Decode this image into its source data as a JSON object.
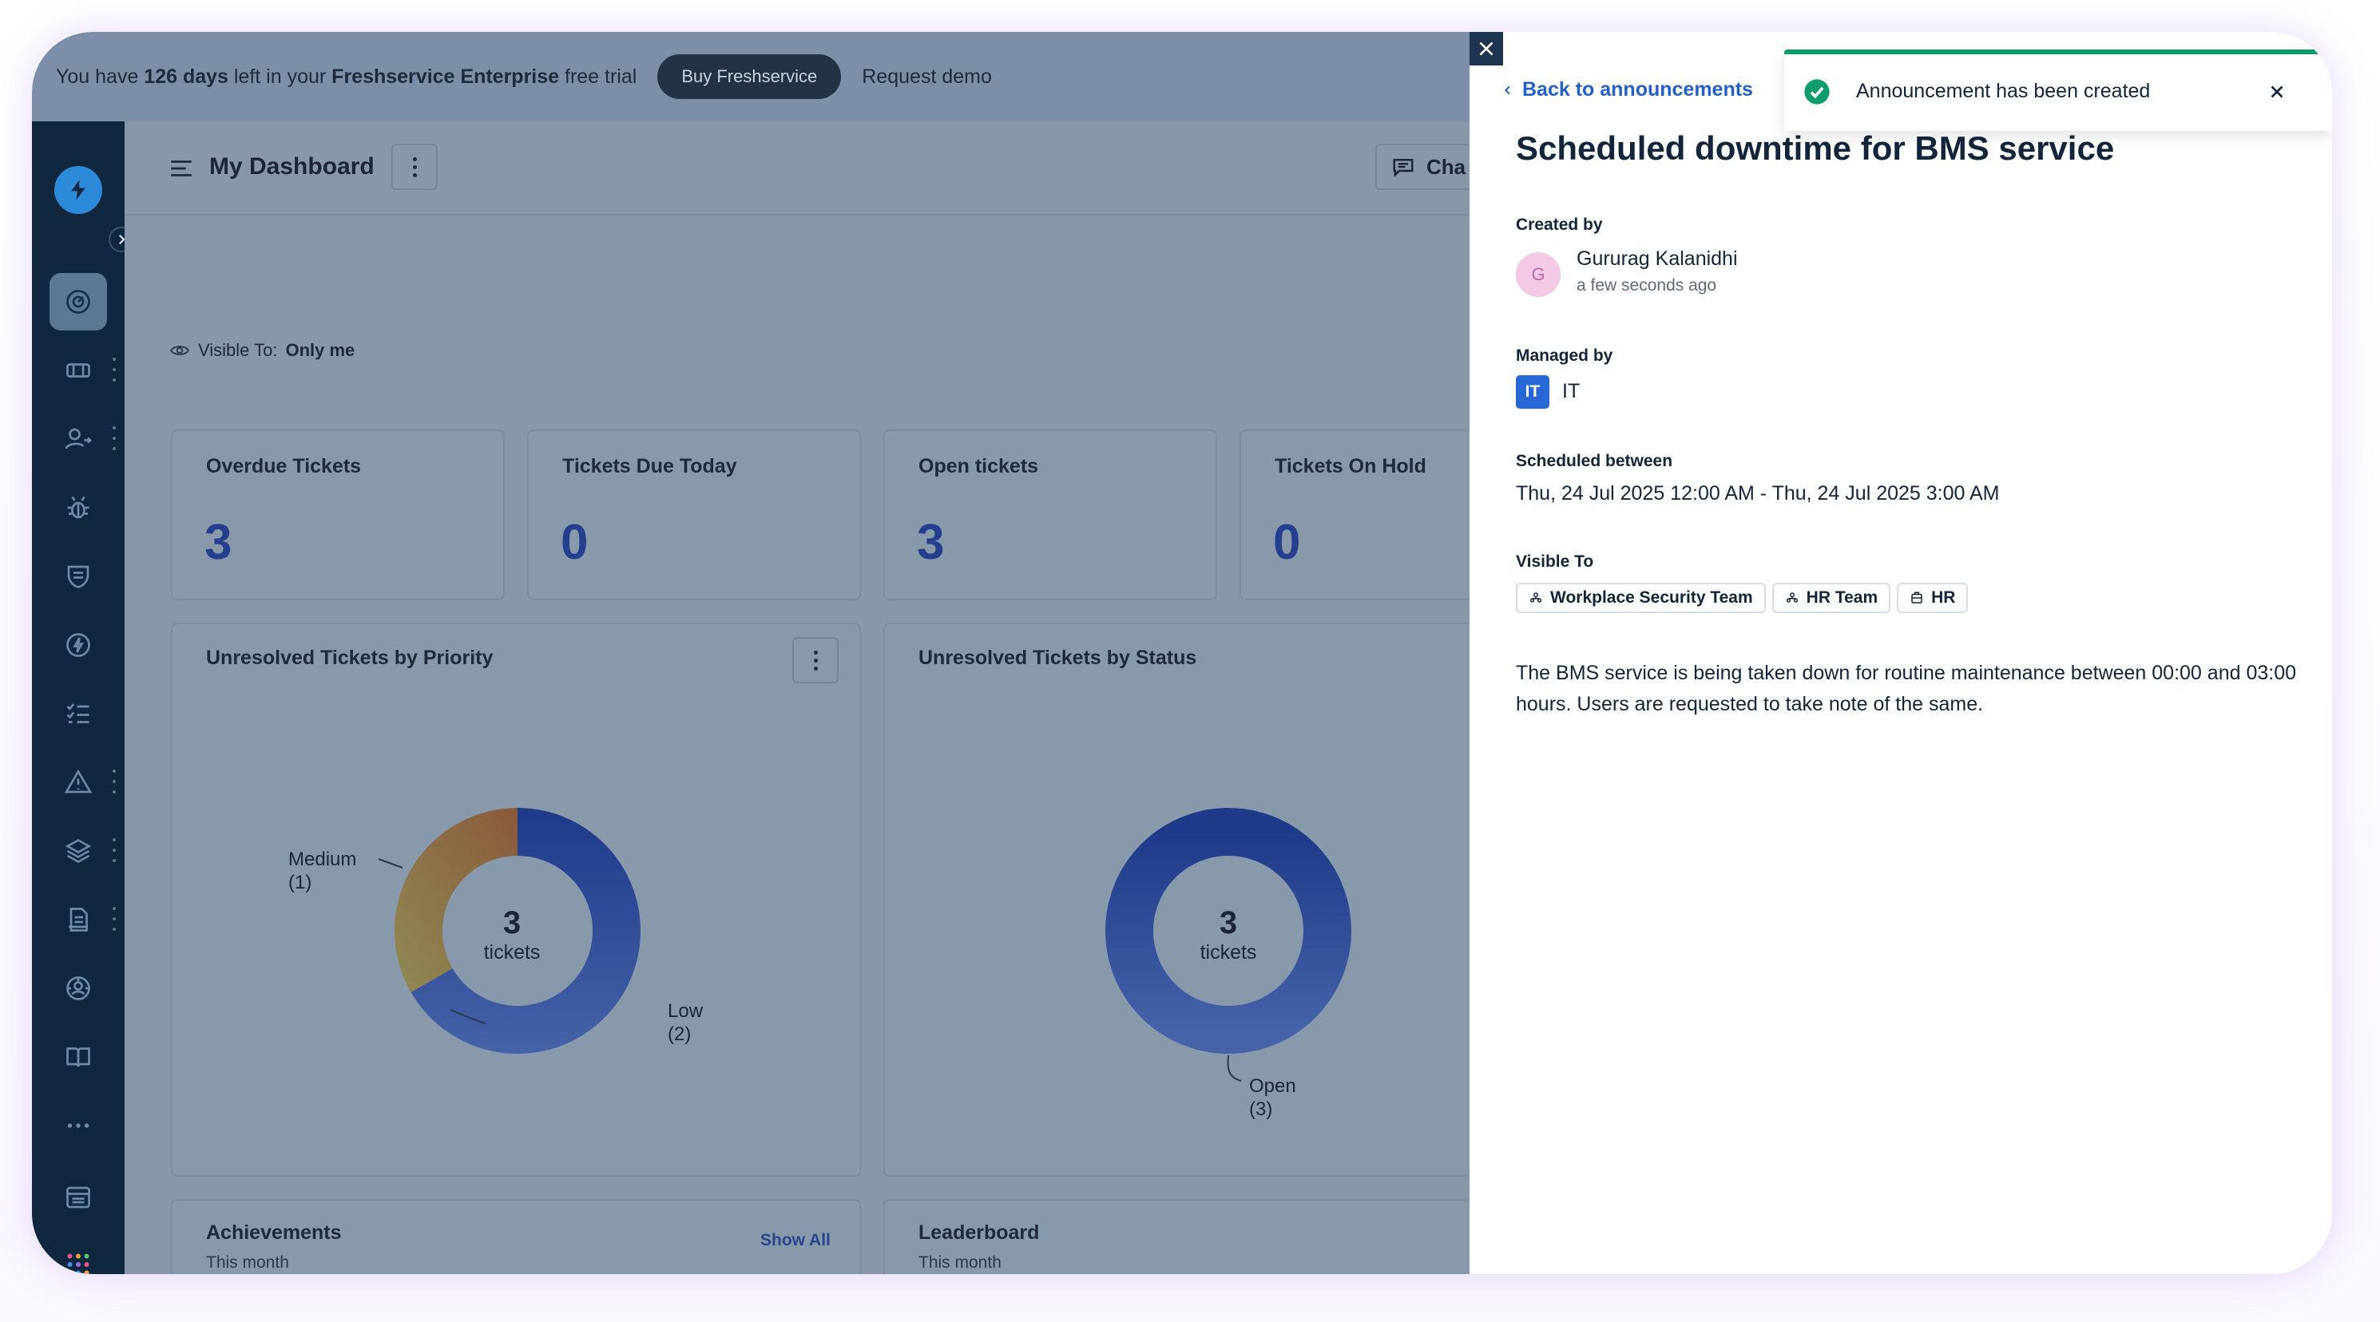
{
  "banner": {
    "text_before": "You have ",
    "days": "126 days",
    "text_mid": " left in your ",
    "plan": "Freshservice Enterprise",
    "text_after": " free trial",
    "buy_label": "Buy Freshservice",
    "demo_label": "Request demo"
  },
  "sidebar": {
    "icons": [
      "dashboard-icon",
      "tickets-icon",
      "user-switch-icon",
      "bug-icon",
      "shield-icon",
      "bolt-icon",
      "checklist-icon",
      "alert-icon",
      "layers-icon",
      "document-icon",
      "support-icon",
      "book-icon",
      "more-icon",
      "inventory-icon",
      "apps-icon"
    ]
  },
  "dashboard": {
    "title": "My Dashboard",
    "chat_label": "Cha",
    "visible_to_label": "Visible To:",
    "visible_to_value": "Only me",
    "stats": [
      {
        "title": "Overdue Tickets",
        "value": "3"
      },
      {
        "title": "Tickets Due Today",
        "value": "0"
      },
      {
        "title": "Open tickets",
        "value": "3"
      },
      {
        "title": "Tickets On Hold",
        "value": "0"
      }
    ],
    "priority_chart": {
      "title": "Unresolved Tickets by Priority",
      "center_number": "3",
      "center_text": "tickets",
      "label_medium_name": "Medium",
      "label_medium_count": "(1)",
      "label_low_name": "Low",
      "label_low_count": "(2)"
    },
    "status_chart": {
      "title": "Unresolved Tickets by Status",
      "center_number": "3",
      "center_text": "tickets",
      "label_open_name": "Open",
      "label_open_count": "(3)"
    },
    "achievements": {
      "title": "Achievements",
      "subtitle": "This month",
      "show_all": "Show All"
    },
    "leaderboard": {
      "title": "Leaderboard",
      "subtitle": "This month"
    }
  },
  "chart_data": [
    {
      "type": "pie",
      "title": "Unresolved Tickets by Priority",
      "categories": [
        "Medium",
        "Low"
      ],
      "values": [
        1,
        2
      ],
      "colors": [
        "#8a6a3a",
        "#25418f"
      ]
    },
    {
      "type": "pie",
      "title": "Unresolved Tickets by Status",
      "categories": [
        "Open"
      ],
      "values": [
        3
      ],
      "colors": [
        "#25418f"
      ]
    }
  ],
  "panel": {
    "back_label": "Back to announcements",
    "title": "Scheduled downtime for BMS service",
    "created_by_label": "Created by",
    "avatar_initial": "G",
    "creator_name": "Gururag Kalanidhi",
    "creator_time": "a few seconds ago",
    "managed_by_label": "Managed by",
    "group_badge": "IT",
    "group_name": "IT",
    "scheduled_label": "Scheduled between",
    "scheduled_value": "Thu, 24 Jul 2025 12:00 AM - Thu, 24 Jul 2025 3:00 AM",
    "visible_label": "Visible To",
    "tags": [
      {
        "label": "Workplace Security Team",
        "icon": "group-icon"
      },
      {
        "label": "HR Team",
        "icon": "group-icon"
      },
      {
        "label": "HR",
        "icon": "department-icon"
      }
    ],
    "body": "The BMS service is being taken down for routine maintenance between 00:00 and 03:00 hours. Users are requested to take note of the same."
  },
  "toast": {
    "message": "Announcement has been created"
  }
}
